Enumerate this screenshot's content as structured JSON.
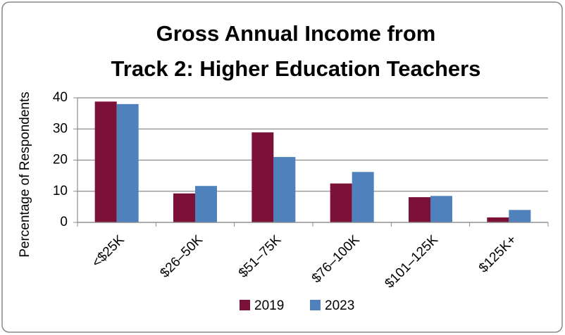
{
  "chart_data": {
    "type": "bar",
    "title": [
      "Gross Annual Income from",
      "Track 2: Higher Education Teachers"
    ],
    "ylabel": "Percentage of Respondents",
    "categories": [
      "<$25K",
      "$26–50K",
      "$51–75K",
      "$76–100K",
      "$101–125K",
      "$125K+"
    ],
    "series": [
      {
        "name": "2019",
        "color": "#7b1038",
        "values": [
          38.8,
          9.3,
          28.9,
          12.5,
          8.1,
          1.6
        ]
      },
      {
        "name": "2023",
        "color": "#4f81bd",
        "values": [
          38.0,
          11.7,
          21.0,
          16.2,
          8.5,
          4.0
        ]
      }
    ],
    "ylim": [
      0,
      40
    ],
    "yticks": [
      0,
      10,
      20,
      30,
      40
    ],
    "grid": true,
    "legend": "bottom"
  }
}
